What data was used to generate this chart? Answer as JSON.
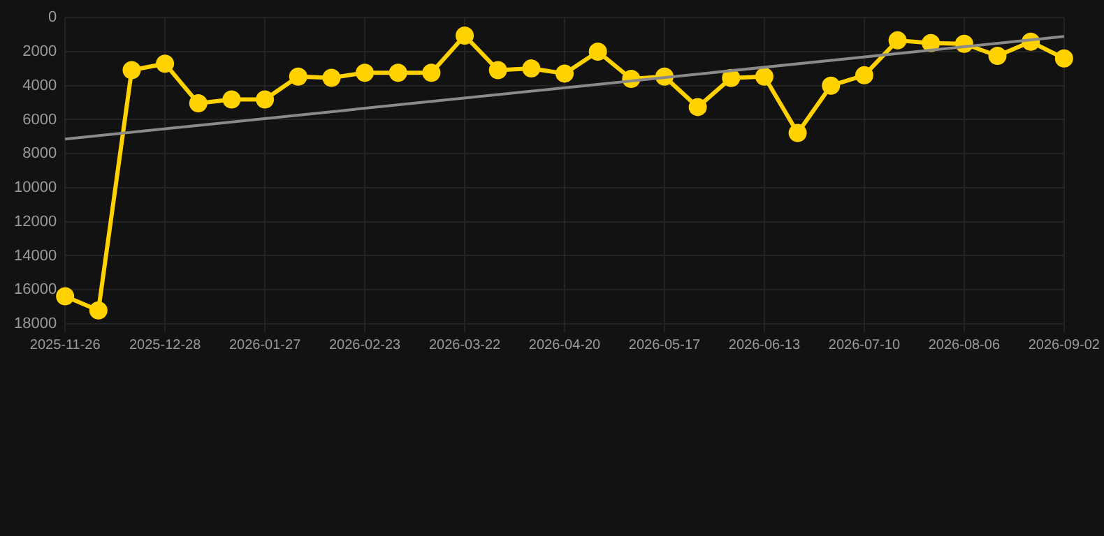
{
  "chart_data": {
    "type": "line",
    "categories": [
      "2025-11-26",
      null,
      null,
      "2025-12-28",
      null,
      null,
      "2026-01-27",
      null,
      null,
      "2026-02-23",
      null,
      null,
      "2026-03-22",
      null,
      null,
      "2026-04-20",
      null,
      null,
      "2026-05-17",
      null,
      null,
      "2026-06-13",
      null,
      null,
      "2026-07-10",
      null,
      null,
      "2026-08-06",
      null,
      null,
      "2026-09-02"
    ],
    "series": [
      {
        "color": "#ffd200",
        "marker": "circle",
        "values": [
          16380,
          17210,
          3090,
          2710,
          5040,
          4810,
          4810,
          3470,
          3540,
          3240,
          3240,
          3240,
          1060,
          3090,
          2990,
          3290,
          2000,
          3600,
          3470,
          5260,
          3550,
          3470,
          6780,
          4000,
          3390,
          1340,
          1500,
          1540,
          2250,
          1420,
          2400
        ]
      },
      {
        "color": "#8a8a8a",
        "marker": "none",
        "values": [
          7140,
          null,
          null,
          null,
          null,
          null,
          null,
          null,
          null,
          null,
          null,
          null,
          null,
          null,
          null,
          null,
          null,
          null,
          null,
          null,
          null,
          null,
          null,
          null,
          null,
          null,
          null,
          null,
          null,
          null,
          1110
        ]
      }
    ],
    "ylim": [
      18000,
      0
    ],
    "yticks": [
      0,
      2000,
      4000,
      6000,
      8000,
      10000,
      12000,
      14000,
      16000,
      18000
    ],
    "grid": true,
    "legend": false
  }
}
